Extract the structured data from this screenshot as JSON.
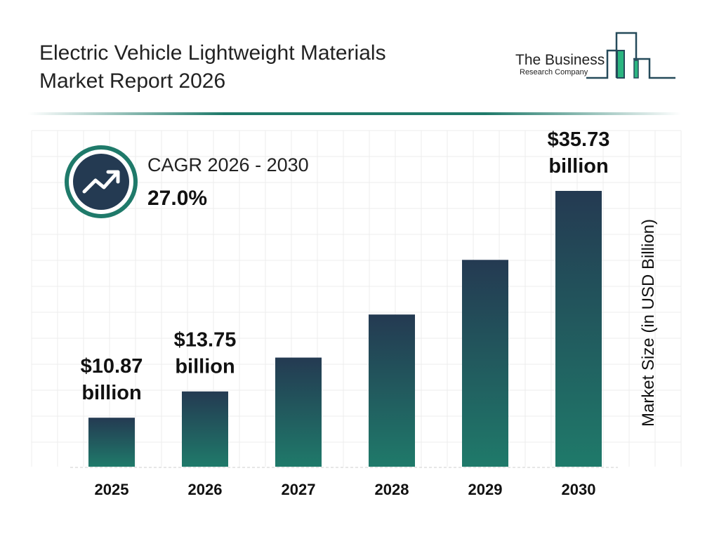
{
  "header": {
    "title_line1": "Electric Vehicle Lightweight Materials",
    "title_line2": "Market Report 2026"
  },
  "logo": {
    "line1": "The Business",
    "line2": "Research Company"
  },
  "cagr": {
    "label": "CAGR 2026 - 2030",
    "value": "27.0%",
    "icon": "trending-up-icon"
  },
  "colors": {
    "bar_top": "#243a52",
    "bar_bottom": "#1f7a6a",
    "accent": "#1f7a6a",
    "logo_green": "#2bb580"
  },
  "chart_data": {
    "type": "bar",
    "categories": [
      "2025",
      "2026",
      "2027",
      "2028",
      "2029",
      "2030"
    ],
    "values": [
      10.87,
      13.75,
      17.46,
      22.18,
      28.17,
      35.73
    ],
    "data_labels": [
      "$10.87 billion",
      "$13.75 billion",
      "",
      "",
      "",
      "$35.73 billion"
    ],
    "ylabel": "Market Size (in USD Billion)",
    "ylim": [
      5.5,
      35.73
    ],
    "grid": true
  }
}
